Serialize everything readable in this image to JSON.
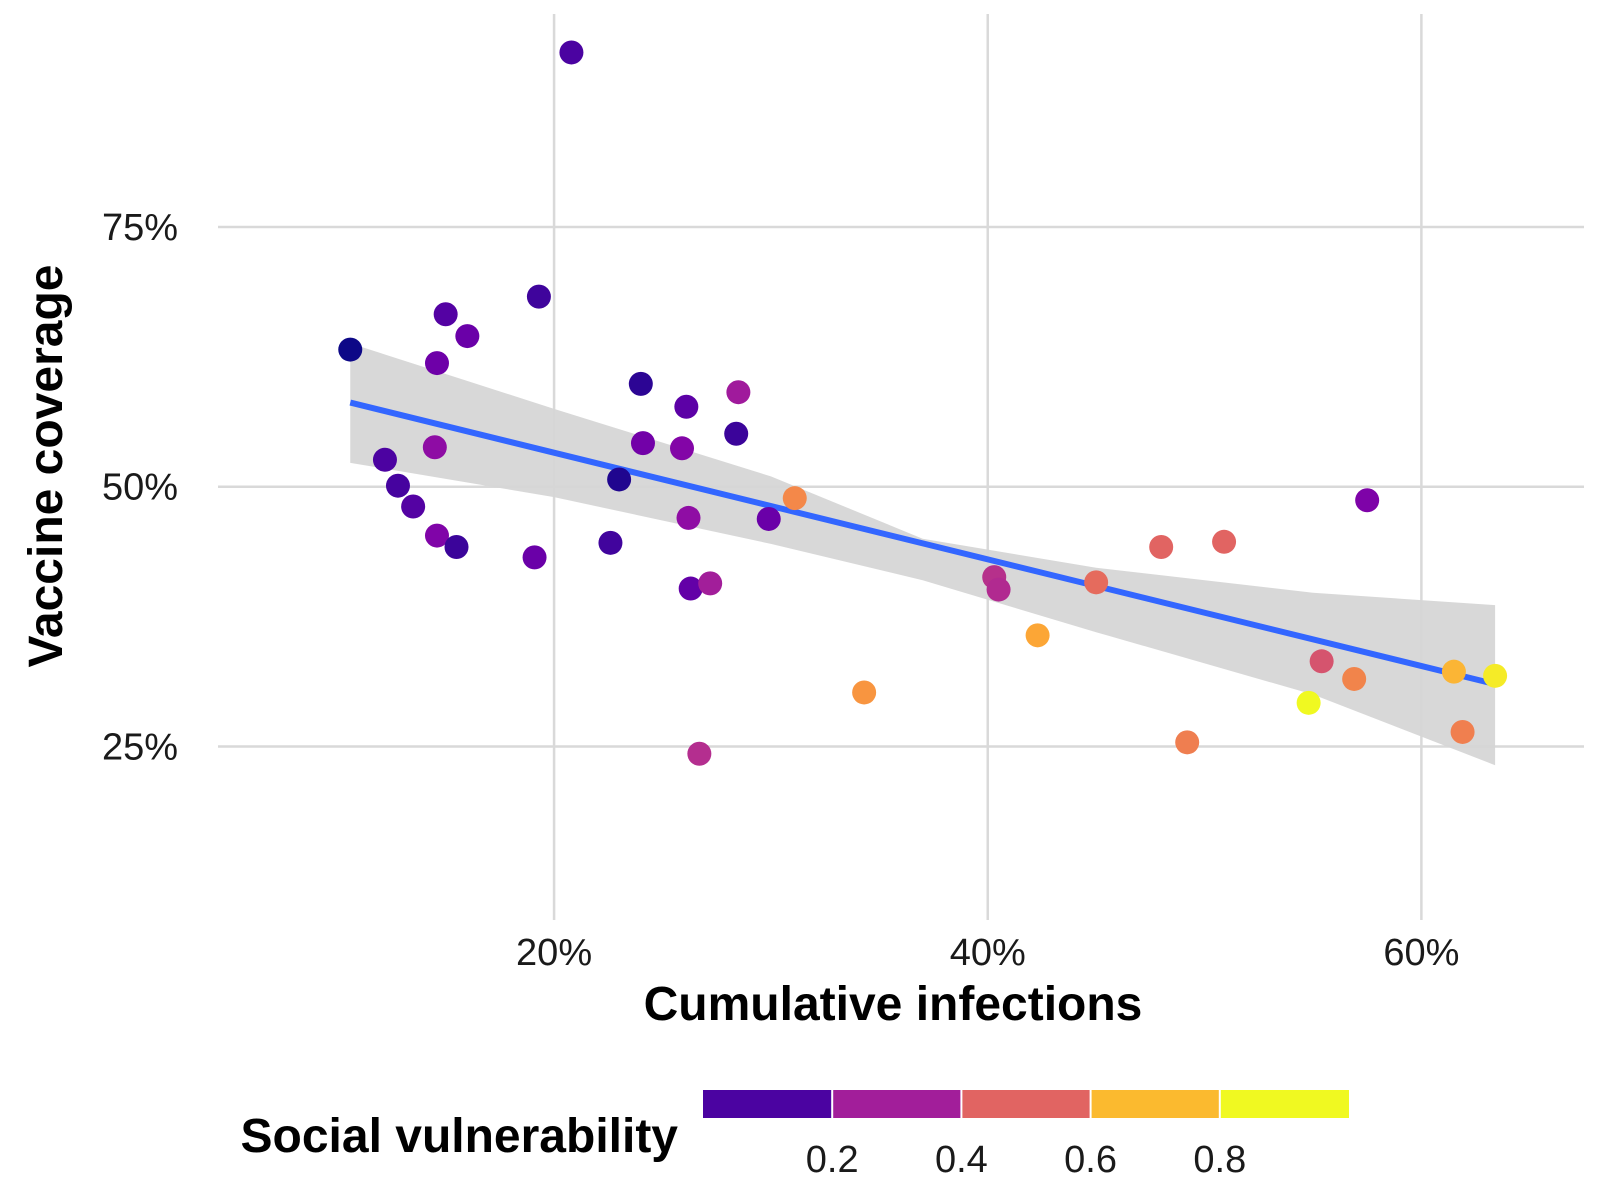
{
  "chart_data": {
    "type": "scatter",
    "xlabel": "Cumulative infections",
    "ylabel": "Vaccine coverage",
    "xlim": [
      0.045,
      0.675
    ],
    "ylim": [
      0.083,
      0.955
    ],
    "x_ticks": [
      0.2,
      0.4,
      0.6
    ],
    "x_tick_labels": [
      "20%",
      "40%",
      "60%"
    ],
    "y_ticks": [
      0.25,
      0.5,
      0.75
    ],
    "y_tick_labels": [
      "25%",
      "50%",
      "75%"
    ],
    "grid": true,
    "legend": {
      "title": "Social vulnerability",
      "placement": "bottom",
      "breaks": [
        0.2,
        0.4,
        0.6,
        0.8
      ],
      "break_labels": [
        "0.2",
        "0.4",
        "0.6",
        "0.8"
      ],
      "bins": [
        {
          "from": 0.0,
          "to": 0.2,
          "color": "#4b03a1"
        },
        {
          "from": 0.2,
          "to": 0.4,
          "color": "#a21e9a"
        },
        {
          "from": 0.4,
          "to": 0.6,
          "color": "#e16462"
        },
        {
          "from": 0.6,
          "to": 0.8,
          "color": "#fbba2f"
        },
        {
          "from": 0.8,
          "to": 1.0,
          "color": "#f0f921"
        }
      ]
    },
    "trend_line": {
      "color": "#3366ff",
      "x": [
        0.106,
        0.634
      ],
      "y": [
        0.581,
        0.31
      ]
    },
    "confidence_band": {
      "color": "#d6d6d6",
      "x": [
        0.106,
        0.2,
        0.3,
        0.37,
        0.45,
        0.55,
        0.634
      ],
      "lower": [
        0.523,
        0.49,
        0.445,
        0.41,
        0.36,
        0.3,
        0.232
      ],
      "upper": [
        0.638,
        0.575,
        0.51,
        0.45,
        0.422,
        0.398,
        0.386
      ]
    },
    "points": [
      {
        "x": 0.106,
        "y": 0.632,
        "color": "#0d0887"
      },
      {
        "x": 0.208,
        "y": 0.918,
        "color": "#4b03a1"
      },
      {
        "x": 0.193,
        "y": 0.683,
        "color": "#3f049c"
      },
      {
        "x": 0.15,
        "y": 0.666,
        "color": "#5402a3"
      },
      {
        "x": 0.16,
        "y": 0.645,
        "color": "#6a00a8"
      },
      {
        "x": 0.146,
        "y": 0.619,
        "color": "#6e00a8"
      },
      {
        "x": 0.122,
        "y": 0.526,
        "color": "#4c02a1"
      },
      {
        "x": 0.128,
        "y": 0.501,
        "color": "#46039f"
      },
      {
        "x": 0.135,
        "y": 0.481,
        "color": "#5402a3"
      },
      {
        "x": 0.145,
        "y": 0.538,
        "color": "#8e0ca4"
      },
      {
        "x": 0.146,
        "y": 0.453,
        "color": "#8004a8"
      },
      {
        "x": 0.155,
        "y": 0.442,
        "color": "#3b049a"
      },
      {
        "x": 0.191,
        "y": 0.432,
        "color": "#6a00a8"
      },
      {
        "x": 0.24,
        "y": 0.599,
        "color": "#2c0594"
      },
      {
        "x": 0.241,
        "y": 0.542,
        "color": "#7201a8"
      },
      {
        "x": 0.261,
        "y": 0.577,
        "color": "#5c01a6"
      },
      {
        "x": 0.259,
        "y": 0.537,
        "color": "#8305a7"
      },
      {
        "x": 0.23,
        "y": 0.507,
        "color": "#20068f"
      },
      {
        "x": 0.226,
        "y": 0.446,
        "color": "#41049d"
      },
      {
        "x": 0.262,
        "y": 0.47,
        "color": "#8f0da4"
      },
      {
        "x": 0.263,
        "y": 0.402,
        "color": "#6300a7"
      },
      {
        "x": 0.272,
        "y": 0.407,
        "color": "#a21e9a"
      },
      {
        "x": 0.285,
        "y": 0.591,
        "color": "#a01a9c"
      },
      {
        "x": 0.284,
        "y": 0.551,
        "color": "#3b049a"
      },
      {
        "x": 0.267,
        "y": 0.243,
        "color": "#b42e8f"
      },
      {
        "x": 0.299,
        "y": 0.469,
        "color": "#6a00a8"
      },
      {
        "x": 0.311,
        "y": 0.489,
        "color": "#f48849"
      },
      {
        "x": 0.343,
        "y": 0.302,
        "color": "#f89540"
      },
      {
        "x": 0.403,
        "y": 0.413,
        "color": "#b6308b"
      },
      {
        "x": 0.405,
        "y": 0.401,
        "color": "#b12a90"
      },
      {
        "x": 0.423,
        "y": 0.357,
        "color": "#fca636"
      },
      {
        "x": 0.45,
        "y": 0.408,
        "color": "#e56b5d"
      },
      {
        "x": 0.48,
        "y": 0.442,
        "color": "#e16462"
      },
      {
        "x": 0.492,
        "y": 0.254,
        "color": "#ef7e50"
      },
      {
        "x": 0.509,
        "y": 0.447,
        "color": "#e16462"
      },
      {
        "x": 0.575,
        "y": 0.487,
        "color": "#7e03a8"
      },
      {
        "x": 0.548,
        "y": 0.292,
        "color": "#f0f921"
      },
      {
        "x": 0.554,
        "y": 0.332,
        "color": "#d5546e"
      },
      {
        "x": 0.569,
        "y": 0.315,
        "color": "#f1844b"
      },
      {
        "x": 0.615,
        "y": 0.322,
        "color": "#fbb535"
      },
      {
        "x": 0.619,
        "y": 0.264,
        "color": "#f07f4f"
      },
      {
        "x": 0.634,
        "y": 0.318,
        "color": "#f5eb27"
      }
    ]
  }
}
